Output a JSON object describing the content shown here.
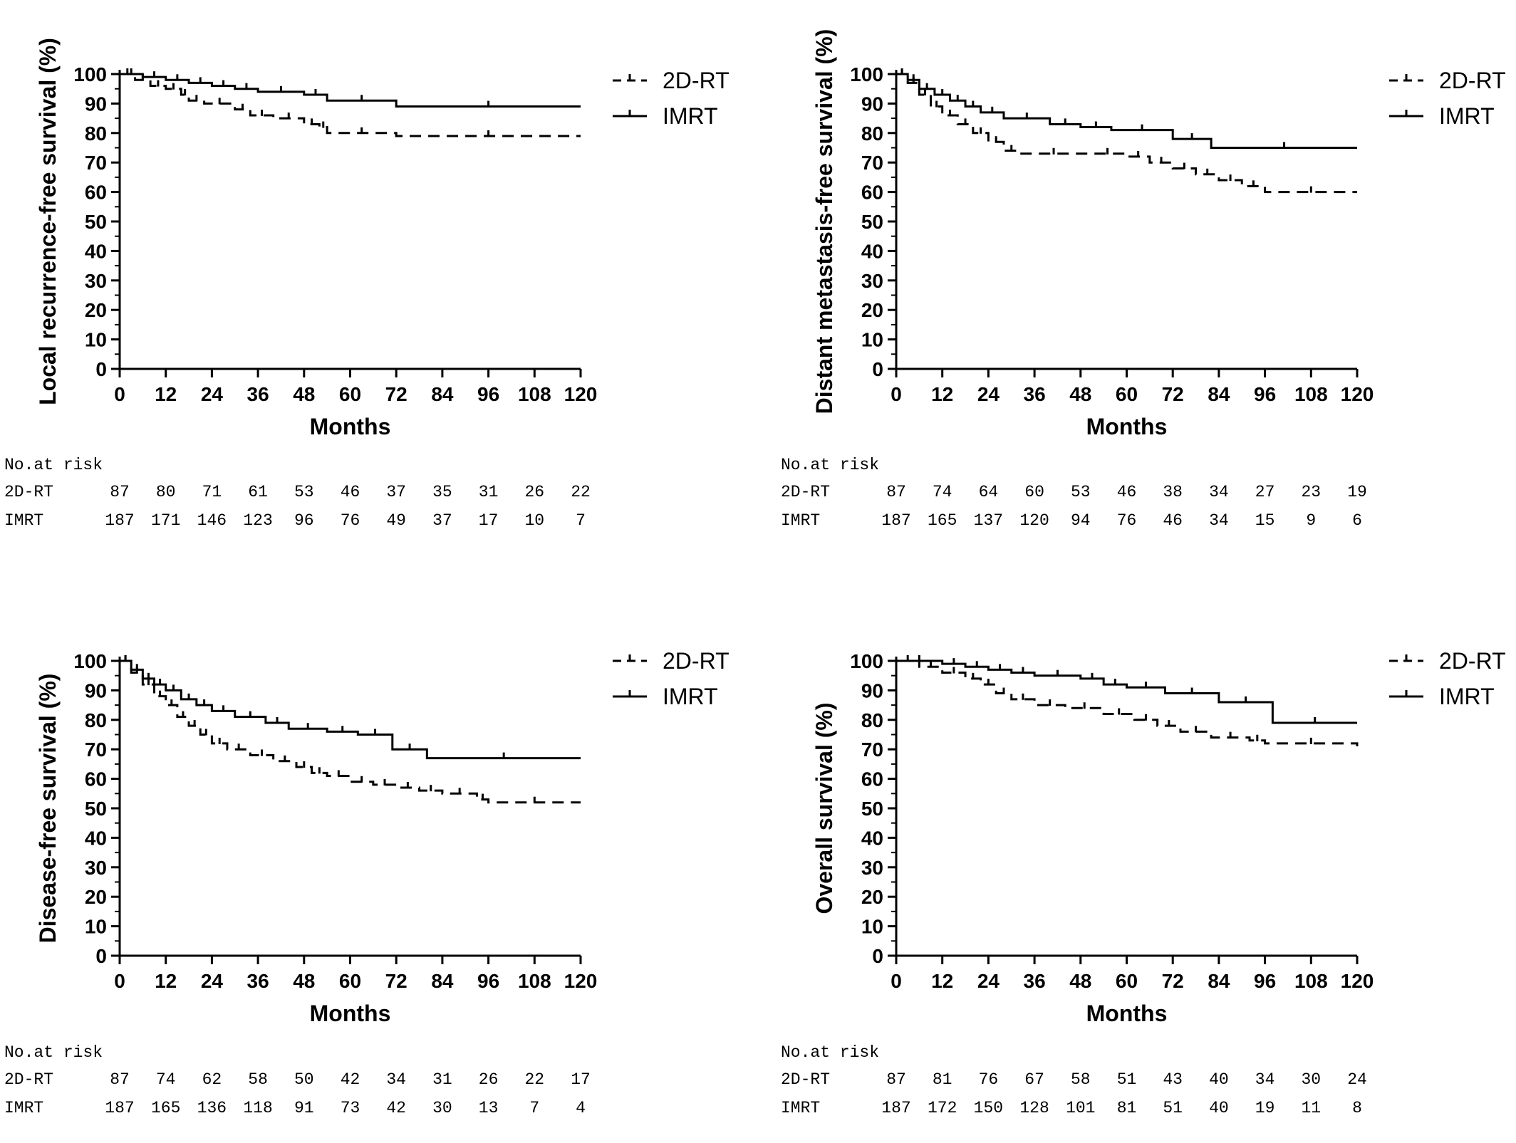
{
  "chart_data": [
    {
      "type": "line",
      "subtype": "kaplan-meier",
      "ylabel": "Local recurrence-free survival (%)",
      "xlabel": "Months",
      "xlim": [
        0,
        120
      ],
      "ylim": [
        0,
        100
      ],
      "xticks": [
        0,
        12,
        24,
        36,
        48,
        60,
        72,
        84,
        96,
        108,
        120
      ],
      "yticks": [
        0,
        10,
        20,
        30,
        40,
        50,
        60,
        70,
        80,
        90,
        100
      ],
      "legend_position": "top-right",
      "series": [
        {
          "name": "2D-RT",
          "style": "dashed",
          "x": [
            0,
            4,
            8,
            12,
            16,
            18,
            22,
            30,
            34,
            40,
            48,
            52,
            54,
            72,
            120
          ],
          "y": [
            100,
            98,
            96,
            95,
            93,
            91,
            90,
            88,
            86,
            85,
            83,
            82,
            80,
            79,
            79
          ]
        },
        {
          "name": "IMRT",
          "style": "solid",
          "x": [
            0,
            6,
            12,
            18,
            24,
            30,
            36,
            48,
            54,
            72,
            120
          ],
          "y": [
            100,
            99,
            98,
            97,
            96,
            95,
            94,
            93,
            91,
            89,
            89
          ]
        }
      ],
      "risk_table": {
        "title": "No.at risk",
        "rows": [
          {
            "label": "2D-RT",
            "values": [
              "87",
              "80",
              "71",
              "61",
              "53",
              "46",
              "37",
              "35",
              "31",
              "26",
              "22"
            ]
          },
          {
            "label": "IMRT",
            "values": [
              "187",
              "171",
              "146",
              "123",
              "96",
              "76",
              "49",
              "37",
              "17",
              "10",
              "7"
            ]
          }
        ]
      }
    },
    {
      "type": "line",
      "subtype": "kaplan-meier",
      "ylabel": "Distant metastasis-free survival (%)",
      "xlabel": "Months",
      "xlim": [
        0,
        120
      ],
      "ylim": [
        0,
        100
      ],
      "xticks": [
        0,
        12,
        24,
        36,
        48,
        60,
        72,
        84,
        96,
        108,
        120
      ],
      "yticks": [
        0,
        10,
        20,
        30,
        40,
        50,
        60,
        70,
        80,
        90,
        100
      ],
      "legend_position": "top-right",
      "series": [
        {
          "name": "2D-RT",
          "style": "dashed",
          "x": [
            0,
            3,
            6,
            9,
            12,
            16,
            20,
            24,
            28,
            32,
            50,
            60,
            66,
            72,
            78,
            84,
            90,
            96,
            120
          ],
          "y": [
            100,
            97,
            93,
            89,
            86,
            83,
            80,
            77,
            74,
            73,
            73,
            72,
            70,
            68,
            66,
            64,
            62,
            60,
            60
          ]
        },
        {
          "name": "IMRT",
          "style": "solid",
          "x": [
            0,
            3,
            6,
            10,
            14,
            18,
            22,
            28,
            40,
            48,
            56,
            72,
            82,
            120
          ],
          "y": [
            100,
            98,
            95,
            93,
            91,
            89,
            87,
            85,
            83,
            82,
            81,
            78,
            75,
            75
          ]
        }
      ],
      "risk_table": {
        "title": "No.at risk",
        "rows": [
          {
            "label": "2D-RT",
            "values": [
              "87",
              "74",
              "64",
              "60",
              "53",
              "46",
              "38",
              "34",
              "27",
              "23",
              "19"
            ]
          },
          {
            "label": "IMRT",
            "values": [
              "187",
              "165",
              "137",
              "120",
              "94",
              "76",
              "46",
              "34",
              "15",
              "9",
              "6"
            ]
          }
        ]
      }
    },
    {
      "type": "line",
      "subtype": "kaplan-meier",
      "ylabel": "Disease-free survival (%)",
      "xlabel": "Months",
      "xlim": [
        0,
        120
      ],
      "ylim": [
        0,
        100
      ],
      "xticks": [
        0,
        12,
        24,
        36,
        48,
        60,
        72,
        84,
        96,
        108,
        120
      ],
      "yticks": [
        0,
        10,
        20,
        30,
        40,
        50,
        60,
        70,
        80,
        90,
        100
      ],
      "legend_position": "top-right",
      "series": [
        {
          "name": "2D-RT",
          "style": "dashed",
          "x": [
            0,
            3,
            6,
            9,
            12,
            15,
            18,
            21,
            24,
            28,
            34,
            40,
            46,
            50,
            54,
            60,
            66,
            72,
            78,
            84,
            93,
            96,
            120
          ],
          "y": [
            100,
            96,
            92,
            88,
            85,
            81,
            78,
            75,
            72,
            70,
            68,
            66,
            64,
            62,
            61,
            59,
            58,
            57,
            56,
            55,
            53,
            52,
            52
          ]
        },
        {
          "name": "IMRT",
          "style": "solid",
          "x": [
            0,
            3,
            6,
            9,
            12,
            16,
            20,
            24,
            30,
            38,
            44,
            54,
            62,
            71,
            80,
            120
          ],
          "y": [
            100,
            97,
            94,
            92,
            90,
            87,
            85,
            83,
            81,
            79,
            77,
            76,
            75,
            70,
            67,
            67
          ]
        }
      ],
      "risk_table": {
        "title": "No.at risk",
        "rows": [
          {
            "label": "2D-RT",
            "values": [
              "87",
              "74",
              "62",
              "58",
              "50",
              "42",
              "34",
              "31",
              "26",
              "22",
              "17"
            ]
          },
          {
            "label": "IMRT",
            "values": [
              "187",
              "165",
              "136",
              "118",
              "91",
              "73",
              "42",
              "30",
              "13",
              "7",
              "4"
            ]
          }
        ]
      }
    },
    {
      "type": "line",
      "subtype": "kaplan-meier",
      "ylabel": "Overall survival (%)",
      "xlabel": "Months",
      "xlim": [
        0,
        120
      ],
      "ylim": [
        0,
        100
      ],
      "xticks": [
        0,
        12,
        24,
        36,
        48,
        60,
        72,
        84,
        96,
        108,
        120
      ],
      "yticks": [
        0,
        10,
        20,
        30,
        40,
        50,
        60,
        70,
        80,
        90,
        100
      ],
      "legend_position": "top-right",
      "series": [
        {
          "name": "2D-RT",
          "style": "dashed",
          "x": [
            0,
            6,
            12,
            18,
            22,
            26,
            30,
            36,
            44,
            54,
            62,
            68,
            74,
            82,
            92,
            96,
            120
          ],
          "y": [
            100,
            98,
            96,
            94,
            92,
            89,
            87,
            85,
            84,
            82,
            80,
            78,
            76,
            74,
            73,
            72,
            71
          ]
        },
        {
          "name": "IMRT",
          "style": "solid",
          "x": [
            0,
            12,
            18,
            24,
            30,
            36,
            48,
            54,
            60,
            70,
            84,
            98,
            120
          ],
          "y": [
            100,
            99,
            98,
            97,
            96,
            95,
            94,
            92,
            91,
            89,
            86,
            79,
            79
          ]
        }
      ],
      "risk_table": {
        "title": "No.at risk",
        "rows": [
          {
            "label": "2D-RT",
            "values": [
              "87",
              "81",
              "76",
              "67",
              "58",
              "51",
              "43",
              "40",
              "34",
              "30",
              "24"
            ]
          },
          {
            "label": "IMRT",
            "values": [
              "187",
              "172",
              "150",
              "128",
              "101",
              "81",
              "51",
              "40",
              "19",
              "11",
              "8"
            ]
          }
        ]
      }
    }
  ]
}
